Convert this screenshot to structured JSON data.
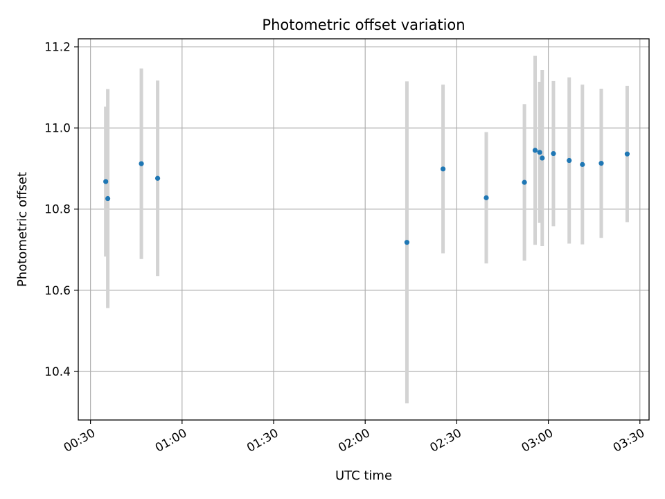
{
  "chart_data": {
    "type": "scatter",
    "title": "Photometric offset variation",
    "xlabel": "UTC time",
    "ylabel": "Photometric offset",
    "xlim": [
      "00:26",
      "03:33"
    ],
    "ylim": [
      10.28,
      11.22
    ],
    "grid": true,
    "x_ticks": [
      "00:30",
      "01:00",
      "01:30",
      "02:00",
      "02:30",
      "03:00",
      "03:30"
    ],
    "y_ticks": [
      10.4,
      10.6,
      10.8,
      11.0,
      11.2
    ],
    "y_tick_labels": [
      "10.4",
      "10.6",
      "10.8",
      "11.0",
      "11.2"
    ],
    "colors": {
      "point": "#1f77b4",
      "errorbar": "#d3d3d3",
      "grid": "#b0b0b0"
    },
    "series": [
      {
        "points": [
          {
            "t": "00:35",
            "y": 10.868,
            "err": 0.185
          },
          {
            "t": "00:35:40",
            "y": 10.826,
            "err": 0.27
          },
          {
            "t": "00:46:40",
            "y": 10.912,
            "err": 0.235
          },
          {
            "t": "00:52",
            "y": 10.876,
            "err": 0.241
          },
          {
            "t": "02:13:40",
            "y": 10.718,
            "err": 0.397
          },
          {
            "t": "02:25:30",
            "y": 10.899,
            "err": 0.208
          },
          {
            "t": "02:39:40",
            "y": 10.828,
            "err": 0.162
          },
          {
            "t": "02:52:10",
            "y": 10.866,
            "err": 0.193
          },
          {
            "t": "02:55:40",
            "y": 10.945,
            "err": 0.233
          },
          {
            "t": "02:57:10",
            "y": 10.94,
            "err": 0.174
          },
          {
            "t": "02:58",
            "y": 10.926,
            "err": 0.217
          },
          {
            "t": "03:01:40",
            "y": 10.937,
            "err": 0.179
          },
          {
            "t": "03:06:50",
            "y": 10.92,
            "err": 0.205
          },
          {
            "t": "03:11:10",
            "y": 10.91,
            "err": 0.197
          },
          {
            "t": "03:17:20",
            "y": 10.913,
            "err": 0.184
          },
          {
            "t": "03:25:50",
            "y": 10.936,
            "err": 0.168
          }
        ]
      }
    ]
  }
}
